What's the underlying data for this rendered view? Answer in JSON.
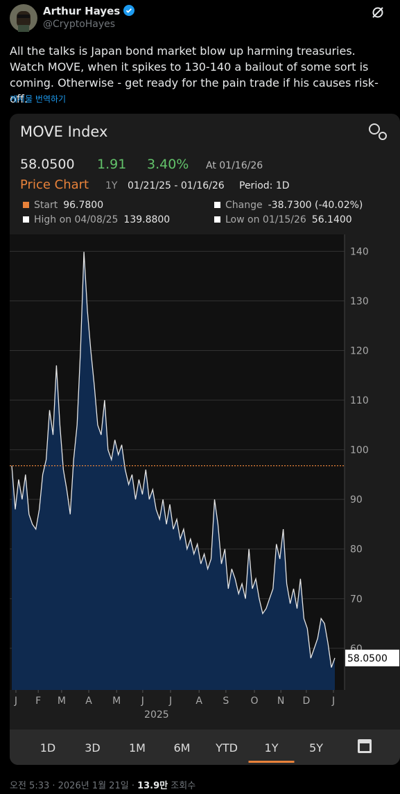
{
  "tweet": {
    "name": "Arthur Hayes",
    "handle": "@CryptoHayes",
    "text": "All the talks is Japan bond market blow up harming treasuries. Watch MOVE, when it spikes to 130-140 a bailout of some sort is coming. Otherwise - get ready for the pain trade if his causes risk-off.",
    "translate": "게시물 번역하기",
    "timestamp": "오전 5:33 · 2026년 1월 21일 ·",
    "views": "13.9만",
    "views_label": "조회수"
  },
  "widget": {
    "title": "MOVE Index",
    "price": "58.0500",
    "change": "1.91",
    "change_pct": "3.40%",
    "as_of": "At 01/16/26",
    "chart_label": "Price Chart",
    "period_code": "1Y",
    "range": "01/21/25 - 01/16/26",
    "period": "Period: 1D",
    "stats": [
      {
        "label": "Start",
        "value": "96.7800"
      },
      {
        "label": "Change",
        "value": "-38.7300 (-40.02%)"
      },
      {
        "label": "High on 04/08/25",
        "value": "139.8800"
      },
      {
        "label": "Low on 01/15/26",
        "value": "56.1400"
      }
    ],
    "tabs": [
      "1D",
      "3D",
      "1M",
      "6M",
      "YTD",
      "1Y",
      "5Y"
    ],
    "active_tab": 5
  },
  "chart_data": {
    "type": "area",
    "color": "#0f2a4f",
    "line_color": "#e6e6e6",
    "reference_color": "#e8823a",
    "grid": true,
    "values": [
      96.78,
      88,
      94,
      90,
      95,
      87,
      85,
      84,
      88,
      95,
      98,
      108,
      103,
      117,
      105,
      96,
      92,
      87,
      98,
      105,
      120,
      139.88,
      128,
      120,
      113,
      105,
      103,
      110,
      100,
      98,
      102,
      99,
      101,
      96,
      93,
      95,
      90,
      94,
      91,
      96,
      90,
      92,
      88,
      86,
      90,
      85,
      89,
      84,
      86,
      82,
      84,
      80,
      82,
      79,
      81,
      77,
      79,
      76,
      78,
      90,
      85,
      77,
      80,
      72,
      76,
      74,
      71,
      73,
      70,
      80,
      72,
      74,
      70,
      67,
      68,
      70,
      72,
      81,
      78,
      84,
      73,
      69,
      72,
      68,
      74,
      66,
      64,
      58,
      60,
      62,
      66,
      65,
      61,
      56.14,
      58.05
    ],
    "xlim": [
      0,
      94
    ],
    "ylim": [
      51.6,
      143.4
    ],
    "yticks": [
      60,
      70,
      80,
      90,
      100,
      110,
      120,
      130,
      140
    ],
    "xticks": [
      {
        "value": 1.2,
        "label": "J"
      },
      {
        "value": 7.7,
        "label": "F"
      },
      {
        "value": 14.5,
        "label": "M"
      },
      {
        "value": 22.4,
        "label": "A"
      },
      {
        "value": 30.5,
        "label": "M"
      },
      {
        "value": 38.1,
        "label": "J"
      },
      {
        "value": 46.2,
        "label": "J"
      },
      {
        "value": 54.5,
        "label": "A"
      },
      {
        "value": 62.3,
        "label": "S"
      },
      {
        "value": 70.6,
        "label": "O"
      },
      {
        "value": 78.3,
        "label": "N"
      },
      {
        "value": 85.7,
        "label": "D"
      },
      {
        "value": 93.6,
        "label": "J"
      }
    ],
    "x_label": "2025"
  }
}
